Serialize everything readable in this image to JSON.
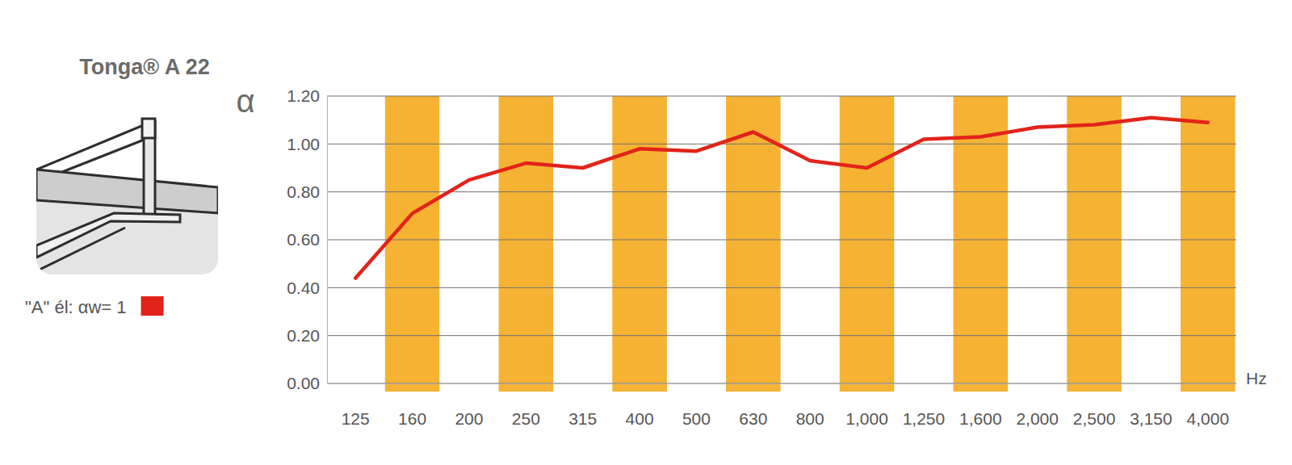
{
  "chart_data": {
    "type": "line",
    "title": "Tonga® A 22",
    "y_label": "α",
    "x_label": "Hz",
    "categories": [
      "125",
      "160",
      "200",
      "250",
      "315",
      "400",
      "500",
      "630",
      "800",
      "1,000",
      "1,250",
      "1,600",
      "2,000",
      "2,500",
      "3,150",
      "4,000"
    ],
    "series": [
      {
        "name": "\"A\" él: αw= 1",
        "color": "#e2231a",
        "values": [
          0.44,
          0.71,
          0.85,
          0.92,
          0.9,
          0.98,
          0.97,
          1.05,
          0.93,
          0.9,
          1.02,
          1.03,
          1.07,
          1.08,
          1.11,
          1.09
        ]
      }
    ],
    "ylim": [
      0,
      1.2
    ],
    "yticks": [
      {
        "value": 0,
        "label": "0.00"
      },
      {
        "value": 0.2,
        "label": "0.20"
      },
      {
        "value": 0.4,
        "label": "0.40"
      },
      {
        "value": 0.6,
        "label": "0.60"
      },
      {
        "value": 0.8,
        "label": "0.80"
      },
      {
        "value": 1.0,
        "label": "1.00"
      },
      {
        "value": 1.2,
        "label": "1.20"
      }
    ],
    "grid": true,
    "legend": "left"
  }
}
